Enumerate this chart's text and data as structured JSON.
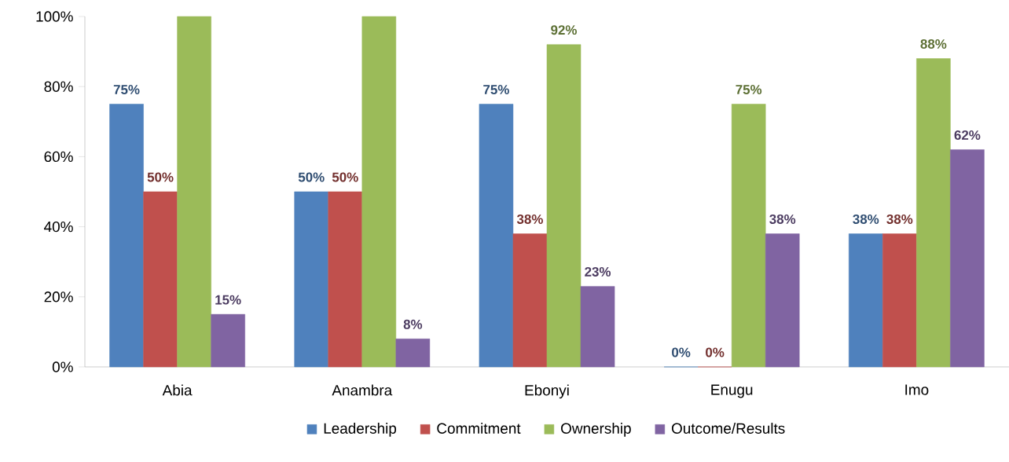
{
  "chart_data": {
    "type": "bar",
    "categories": [
      "Abia",
      "Anambra",
      "Ebonyi",
      "Enugu",
      "Imo"
    ],
    "series": [
      {
        "name": "Leadership",
        "color": "#4f81bd",
        "values": [
          75,
          50,
          75,
          0,
          38
        ],
        "value_labels": [
          "75%",
          "50%",
          "75%",
          "0%",
          "38%"
        ]
      },
      {
        "name": "Commitment",
        "color": "#c0504d",
        "values": [
          50,
          50,
          38,
          0,
          38
        ],
        "value_labels": [
          "50%",
          "50%",
          "38%",
          "0%",
          "38%"
        ]
      },
      {
        "name": "Ownership",
        "color": "#9bbb59",
        "values": [
          100,
          100,
          92,
          75,
          88
        ],
        "value_labels": [
          null,
          null,
          "92%",
          "75%",
          "88%"
        ]
      },
      {
        "name": "Outcome/Results",
        "color": "#8064a2",
        "values": [
          15,
          8,
          23,
          38,
          62
        ],
        "value_labels": [
          "15%",
          "8%",
          "23%",
          "38%",
          "62%"
        ]
      }
    ],
    "ylim": [
      0,
      100
    ],
    "yticks": [
      {
        "value": 0,
        "label": "0%"
      },
      {
        "value": 20,
        "label": "20%"
      },
      {
        "value": 40,
        "label": "40%"
      },
      {
        "value": 60,
        "label": "60%"
      },
      {
        "value": 80,
        "label": "80%"
      },
      {
        "value": 100,
        "label": "100%"
      }
    ],
    "legend": "bottom"
  }
}
